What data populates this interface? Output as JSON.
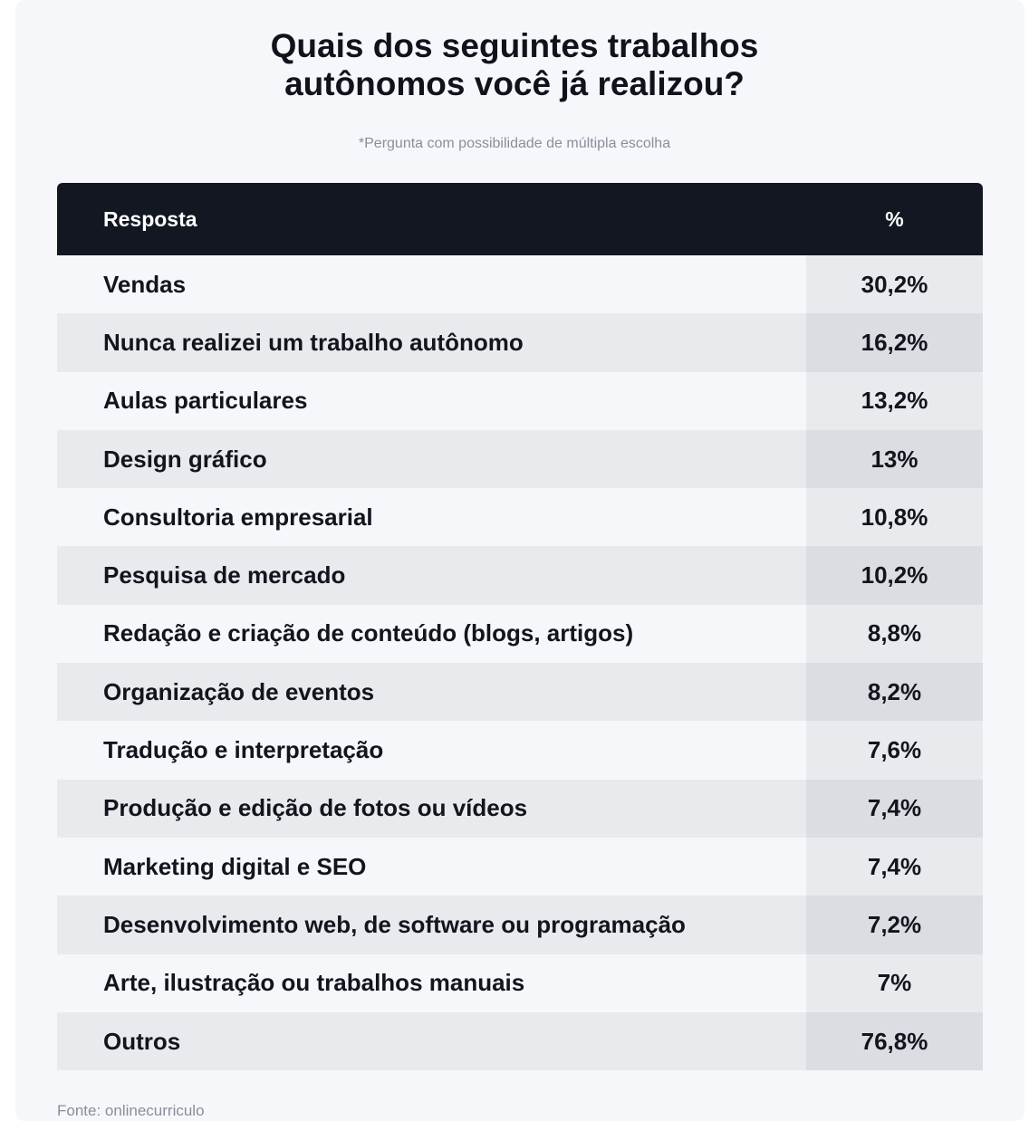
{
  "header": {
    "title_line1": "Quais dos seguintes trabalhos",
    "title_line2": "autônomos você já realizou?",
    "subtitle": "*Pergunta com possibilidade de múltipla escolha"
  },
  "footer": {
    "source": "Fonte: onlinecurriculo"
  },
  "chart_data": {
    "type": "table",
    "columns": [
      "Resposta",
      "%"
    ],
    "rows": [
      {
        "label": "Vendas",
        "value": "30,2%"
      },
      {
        "label": "Nunca realizei um trabalho autônomo",
        "value": "16,2%"
      },
      {
        "label": "Aulas particulares",
        "value": "13,2%"
      },
      {
        "label": "Design gráfico",
        "value": "13%"
      },
      {
        "label": "Consultoria empresarial",
        "value": "10,8%"
      },
      {
        "label": "Pesquisa de mercado",
        "value": "10,2%"
      },
      {
        "label": "Redação e criação de conteúdo (blogs, artigos)",
        "value": "8,8%"
      },
      {
        "label": "Organização de eventos",
        "value": "8,2%"
      },
      {
        "label": "Tradução e interpretação",
        "value": "7,6%"
      },
      {
        "label": "Produção e edição de fotos ou vídeos",
        "value": "7,4%"
      },
      {
        "label": "Marketing digital e SEO",
        "value": "7,4%"
      },
      {
        "label": "Desenvolvimento web, de software ou programação",
        "value": "7,2%"
      },
      {
        "label": "Arte, ilustração ou trabalhos manuais",
        "value": "7%"
      },
      {
        "label": "Outros",
        "value": "76,8%"
      }
    ]
  }
}
